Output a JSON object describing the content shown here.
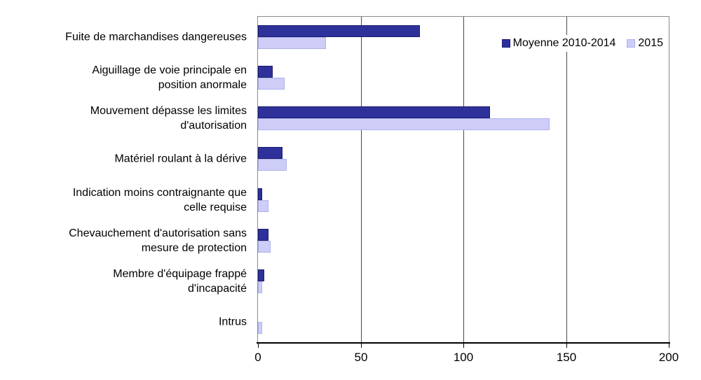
{
  "chart_data": {
    "type": "bar",
    "orientation": "horizontal",
    "title": "",
    "xlabel": "",
    "ylabel": "",
    "xlim": [
      0,
      200
    ],
    "xticks": [
      0,
      50,
      100,
      150,
      200
    ],
    "grid": "vertical-at-50-100-150",
    "legend_position": "top-right-inside-plot",
    "categories": [
      "Fuite de marchandises dangereuses",
      "Aiguillage de voie principale en\nposition anormale",
      "Mouvement dépasse les limites\nd'autorisation",
      "Matériel roulant à la dérive",
      "Indication moins contraignante que\ncelle requise",
      "Chevauchement d'autorisation sans\nmesure de protection",
      "Membre d'équipage frappé\nd'incapacité",
      "Intrus"
    ],
    "series": [
      {
        "name": "Moyenne 2010-2014",
        "fill_color": "#2F319B",
        "border_color": "#1A1B6E",
        "values": [
          79,
          7,
          113,
          12,
          2,
          5,
          3,
          0
        ]
      },
      {
        "name": "2015",
        "fill_color": "#CDCDF8",
        "border_color": "#AFB1E8",
        "values": [
          33,
          13,
          142,
          14,
          5,
          6,
          2,
          2
        ]
      }
    ],
    "colors": {
      "plot_border": "#8a8a8a",
      "gridline": "#4a4a4a",
      "axis_line": "#000000",
      "text": "#000000",
      "background": "#ffffff"
    }
  }
}
